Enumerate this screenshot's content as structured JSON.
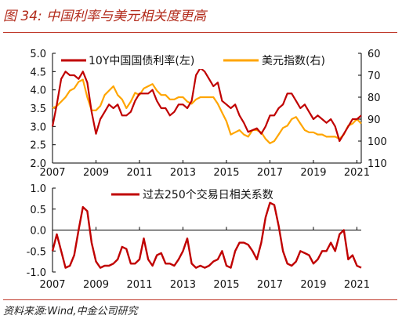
{
  "figure": {
    "title": "图 34:  中国利率与美元相关度更高",
    "source": "资料来源:Wind,中金公司研究"
  },
  "chart_data": [
    {
      "type": "line",
      "x_ticks": [
        "2007",
        "2009",
        "2011",
        "2013",
        "2015",
        "2017",
        "2019",
        "2021"
      ],
      "y_left_ticks": [
        "5.0",
        "4.5",
        "4.0",
        "3.5",
        "3.0",
        "2.5",
        "2.0"
      ],
      "y_right_ticks": [
        "60",
        "70",
        "80",
        "90",
        "100",
        "110"
      ],
      "ylim_left": [
        2.0,
        5.0
      ],
      "ylim_right": [
        110,
        60
      ],
      "xlim": [
        2007.0,
        2021.2
      ],
      "right_axis_inverted": true,
      "legend_position": "top",
      "series": [
        {
          "name": "10Y中国国债利率(左)",
          "axis": "left",
          "color": "#c00000",
          "x": [
            2007.0,
            2007.2,
            2007.4,
            2007.6,
            2007.8,
            2008.0,
            2008.2,
            2008.4,
            2008.6,
            2008.8,
            2009.0,
            2009.2,
            2009.4,
            2009.6,
            2009.8,
            2010.0,
            2010.2,
            2010.4,
            2010.6,
            2010.8,
            2011.0,
            2011.2,
            2011.4,
            2011.6,
            2011.8,
            2012.0,
            2012.2,
            2012.4,
            2012.6,
            2012.8,
            2013.0,
            2013.2,
            2013.4,
            2013.6,
            2013.8,
            2014.0,
            2014.2,
            2014.4,
            2014.6,
            2014.8,
            2015.0,
            2015.2,
            2015.4,
            2015.6,
            2015.8,
            2016.0,
            2016.2,
            2016.4,
            2016.6,
            2016.8,
            2017.0,
            2017.2,
            2017.4,
            2017.6,
            2017.8,
            2018.0,
            2018.2,
            2018.4,
            2018.6,
            2018.8,
            2019.0,
            2019.2,
            2019.4,
            2019.6,
            2019.8,
            2020.0,
            2020.2,
            2020.4,
            2020.6,
            2020.8,
            2021.0,
            2021.2
          ],
          "values": [
            3.0,
            3.6,
            4.3,
            4.5,
            4.4,
            4.4,
            4.3,
            4.5,
            4.2,
            3.4,
            2.8,
            3.2,
            3.4,
            3.6,
            3.5,
            3.6,
            3.3,
            3.3,
            3.4,
            3.7,
            3.9,
            3.9,
            3.9,
            4.0,
            3.7,
            3.5,
            3.5,
            3.3,
            3.4,
            3.6,
            3.6,
            3.5,
            3.7,
            4.4,
            4.6,
            4.5,
            4.3,
            4.1,
            4.2,
            3.7,
            3.6,
            3.5,
            3.6,
            3.3,
            3.1,
            2.85,
            2.9,
            2.95,
            2.8,
            3.0,
            3.3,
            3.3,
            3.5,
            3.6,
            3.9,
            3.9,
            3.7,
            3.5,
            3.6,
            3.4,
            3.2,
            3.3,
            3.2,
            3.1,
            3.2,
            3.0,
            2.6,
            2.8,
            3.0,
            3.2,
            3.2,
            3.3
          ]
        },
        {
          "name": "美元指数(右)",
          "axis": "right",
          "color": "#ffa500",
          "x": [
            2007.0,
            2007.2,
            2007.4,
            2007.6,
            2007.8,
            2008.0,
            2008.2,
            2008.4,
            2008.6,
            2008.8,
            2009.0,
            2009.2,
            2009.4,
            2009.6,
            2009.8,
            2010.0,
            2010.2,
            2010.4,
            2010.6,
            2010.8,
            2011.0,
            2011.2,
            2011.4,
            2011.6,
            2011.8,
            2012.0,
            2012.2,
            2012.4,
            2012.6,
            2012.8,
            2013.0,
            2013.2,
            2013.4,
            2013.6,
            2013.8,
            2014.0,
            2014.2,
            2014.4,
            2014.6,
            2014.8,
            2015.0,
            2015.2,
            2015.4,
            2015.6,
            2015.8,
            2016.0,
            2016.2,
            2016.4,
            2016.6,
            2016.8,
            2017.0,
            2017.2,
            2017.4,
            2017.6,
            2017.8,
            2018.0,
            2018.2,
            2018.4,
            2018.6,
            2018.8,
            2019.0,
            2019.2,
            2019.4,
            2019.6,
            2019.8,
            2020.0,
            2020.2,
            2020.4,
            2020.6,
            2020.8,
            2021.0,
            2021.2
          ],
          "values": [
            85,
            84,
            82,
            80,
            77,
            76,
            73,
            72,
            80,
            86,
            86,
            84,
            79,
            77,
            75,
            79,
            81,
            85,
            82,
            78,
            79,
            76,
            75,
            74,
            77,
            79,
            79,
            81,
            81,
            80,
            80,
            82,
            83,
            81,
            80,
            80,
            80,
            80,
            83,
            87,
            91,
            97,
            96,
            95,
            97,
            98,
            95,
            95,
            96,
            99,
            101,
            100,
            97,
            94,
            93,
            90,
            89,
            92,
            95,
            96,
            96,
            97,
            97,
            98,
            98,
            98,
            99,
            97,
            93,
            92,
            90,
            92
          ]
        }
      ]
    },
    {
      "type": "line",
      "x_ticks": [
        "2007",
        "2009",
        "2011",
        "2013",
        "2015",
        "2017",
        "2019",
        "2021"
      ],
      "y_ticks": [
        "1.0",
        "0.5",
        "0.0",
        "-0.5",
        "-1.0"
      ],
      "ylim": [
        -1.0,
        1.0
      ],
      "xlim": [
        2007.0,
        2021.2
      ],
      "legend_position": "top",
      "series": [
        {
          "name": "过去250个交易日相关系数",
          "color": "#c00000",
          "x": [
            2007.0,
            2007.2,
            2007.4,
            2007.6,
            2007.8,
            2008.0,
            2008.2,
            2008.4,
            2008.6,
            2008.8,
            2009.0,
            2009.2,
            2009.4,
            2009.6,
            2009.8,
            2010.0,
            2010.2,
            2010.4,
            2010.6,
            2010.8,
            2011.0,
            2011.2,
            2011.4,
            2011.6,
            2011.8,
            2012.0,
            2012.2,
            2012.4,
            2012.6,
            2012.8,
            2013.0,
            2013.2,
            2013.4,
            2013.6,
            2013.8,
            2014.0,
            2014.2,
            2014.4,
            2014.6,
            2014.8,
            2015.0,
            2015.2,
            2015.4,
            2015.6,
            2015.8,
            2016.0,
            2016.2,
            2016.4,
            2016.6,
            2016.8,
            2017.0,
            2017.2,
            2017.4,
            2017.6,
            2017.8,
            2018.0,
            2018.2,
            2018.4,
            2018.6,
            2018.8,
            2019.0,
            2019.2,
            2019.4,
            2019.6,
            2019.8,
            2020.0,
            2020.2,
            2020.4,
            2020.6,
            2020.8,
            2021.0,
            2021.2
          ],
          "values": [
            -0.5,
            -0.1,
            -0.5,
            -0.9,
            -0.85,
            -0.6,
            0.0,
            0.55,
            0.45,
            -0.3,
            -0.75,
            -0.9,
            -0.85,
            -0.85,
            -0.8,
            -0.7,
            -0.4,
            -0.45,
            -0.8,
            -0.8,
            -0.7,
            -0.2,
            -0.7,
            -0.85,
            -0.6,
            -0.55,
            -0.8,
            -0.8,
            -0.85,
            -0.7,
            -0.5,
            -0.2,
            -0.8,
            -0.9,
            -0.85,
            -0.9,
            -0.85,
            -0.75,
            -0.7,
            -0.5,
            -0.85,
            -0.9,
            -0.5,
            -0.3,
            -0.3,
            -0.35,
            -0.5,
            -0.7,
            -0.3,
            0.3,
            0.65,
            0.6,
            0.1,
            -0.5,
            -0.8,
            -0.85,
            -0.75,
            -0.5,
            -0.55,
            -0.6,
            -0.8,
            -0.7,
            -0.5,
            -0.5,
            -0.3,
            -0.5,
            -0.1,
            0.0,
            -0.7,
            -0.6,
            -0.85,
            -0.9
          ]
        }
      ]
    }
  ]
}
